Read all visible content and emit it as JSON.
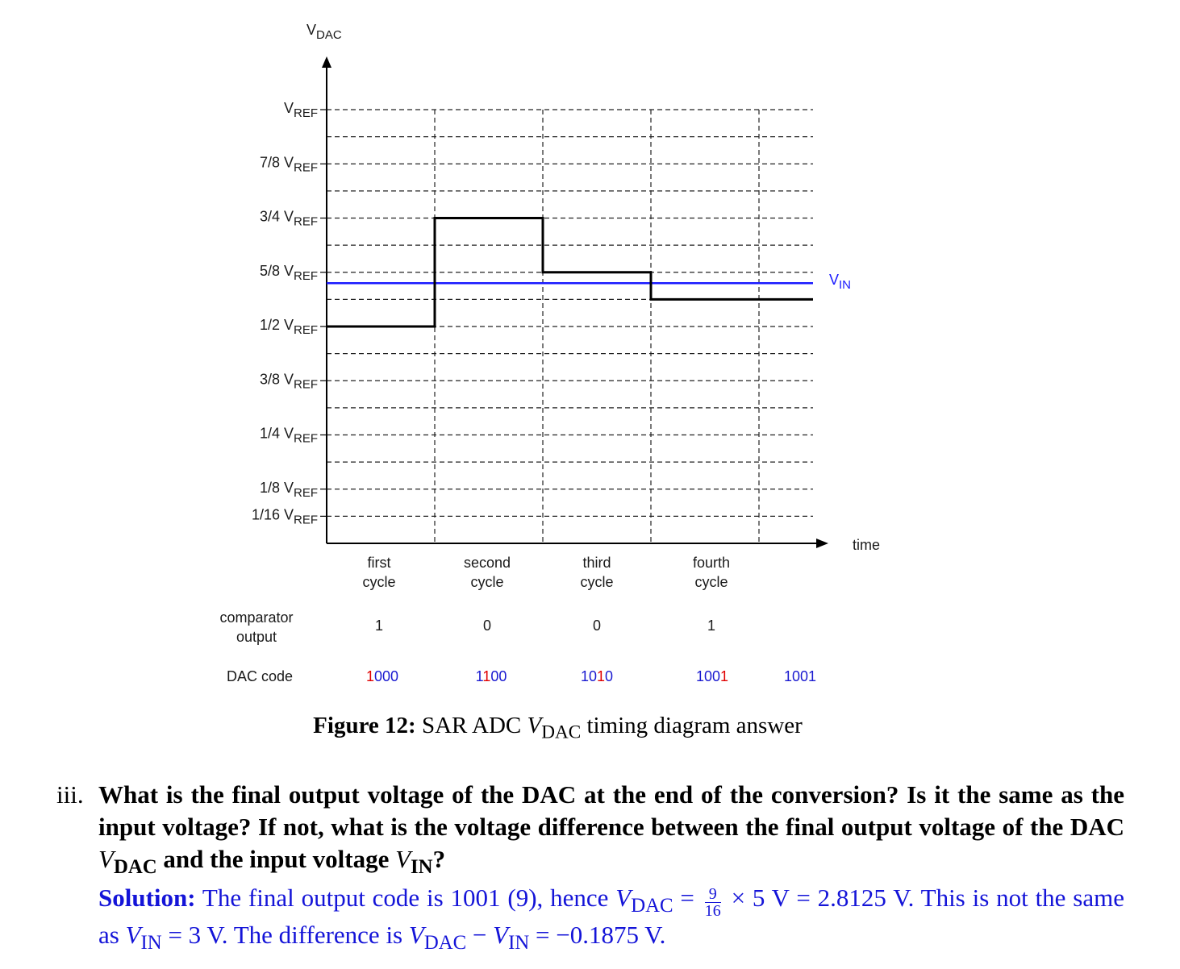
{
  "chart_data": {
    "type": "line",
    "title": "",
    "ylabel": {
      "main": "V",
      "sub": "DAC"
    },
    "xlabel": "time",
    "y_unit_sub": "REF",
    "y_ticks": [
      {
        "value": 1.0,
        "prefix": "",
        "main": "V",
        "sub": "REF"
      },
      {
        "value": 0.875,
        "prefix": "7/8 ",
        "main": "V",
        "sub": "REF"
      },
      {
        "value": 0.75,
        "prefix": "3/4 ",
        "main": "V",
        "sub": "REF"
      },
      {
        "value": 0.625,
        "prefix": "5/8 ",
        "main": "V",
        "sub": "REF"
      },
      {
        "value": 0.5,
        "prefix": "1/2 ",
        "main": "V",
        "sub": "REF"
      },
      {
        "value": 0.375,
        "prefix": "3/8 ",
        "main": "V",
        "sub": "REF"
      },
      {
        "value": 0.25,
        "prefix": "1/4 ",
        "main": "V",
        "sub": "REF"
      },
      {
        "value": 0.125,
        "prefix": "1/8 ",
        "main": "V",
        "sub": "REF"
      },
      {
        "value": 0.0625,
        "prefix": "1/16 ",
        "main": "V",
        "sub": "REF"
      }
    ],
    "gridlines_y": [
      1.0,
      0.9375,
      0.875,
      0.8125,
      0.75,
      0.6875,
      0.625,
      0.5625,
      0.5,
      0.4375,
      0.375,
      0.3125,
      0.25,
      0.1875,
      0.125,
      0.0625
    ],
    "ylim": [
      0,
      1.125
    ],
    "xlim": [
      0,
      4.5
    ],
    "cycle_boundaries": [
      1,
      2,
      3,
      4
    ],
    "grid": true,
    "cycles": [
      {
        "line1": "first",
        "line2": "cycle"
      },
      {
        "line1": "second",
        "line2": "cycle"
      },
      {
        "line1": "third",
        "line2": "cycle"
      },
      {
        "line1": "fourth",
        "line2": "cycle"
      }
    ],
    "series": [
      {
        "type": "step",
        "color": "#000000",
        "steps": [
          {
            "x0": 0,
            "x1": 1,
            "y": 0.5
          },
          {
            "x0": 1,
            "x1": 2,
            "y": 0.75
          },
          {
            "x0": 2,
            "x1": 3,
            "y": 0.625
          },
          {
            "x0": 3,
            "x1": 4.5,
            "y": 0.5625
          }
        ]
      },
      {
        "type": "hline",
        "color": "#1a1aff",
        "y": 0.6,
        "label_main": "V",
        "label_sub": "IN"
      }
    ],
    "rows": {
      "comparator_label_1": "comparator",
      "comparator_label_2": "output",
      "comparator_values": [
        "1",
        "0",
        "0",
        "1"
      ],
      "dac_label": "DAC code",
      "dac_codes": [
        {
          "highlight": "1",
          "rest": "000"
        },
        {
          "prefix": "1",
          "highlight": "1",
          "rest": "00"
        },
        {
          "prefix": "10",
          "highlight": "1",
          "rest": "0"
        },
        {
          "prefix": "100",
          "highlight": "1",
          "rest": ""
        },
        {
          "prefix": "1001",
          "highlight": "",
          "rest": ""
        }
      ],
      "highlight_color": "#e00000",
      "code_color": "#1a1ad0"
    }
  },
  "caption": {
    "fig": "Figure 12:",
    "pre": " SAR ADC ",
    "v": "V",
    "vsub": "DAC",
    "post": " timing diagram answer"
  },
  "question": {
    "number": "iii.",
    "text1": "What is the final output voltage of the DAC at the end of the conversion? Is it the same as the input voltage? If not, what is the voltage difference between the final output voltage of the DAC ",
    "v1": "V",
    "v1sub": "DAC",
    "text2": " and the input voltage ",
    "v2": "V",
    "v2sub": "IN",
    "text3": "?"
  },
  "solution": {
    "label": "Solution:",
    "t1": "  The final output code is 1001 (9), hence ",
    "v1": "V",
    "v1sub": "DAC",
    "eq1": " = ",
    "frac_num": "9",
    "frac_den": "16",
    "t2": " × 5 V = 2.8125 V. This is not the same as ",
    "v2": "V",
    "v2sub": "IN",
    "t3": " = 3 V. The difference is ",
    "v3": "V",
    "v3sub": "DAC",
    "t4": " − ",
    "v4": "V",
    "v4sub": "IN",
    "t5": " = −0.1875 V."
  }
}
